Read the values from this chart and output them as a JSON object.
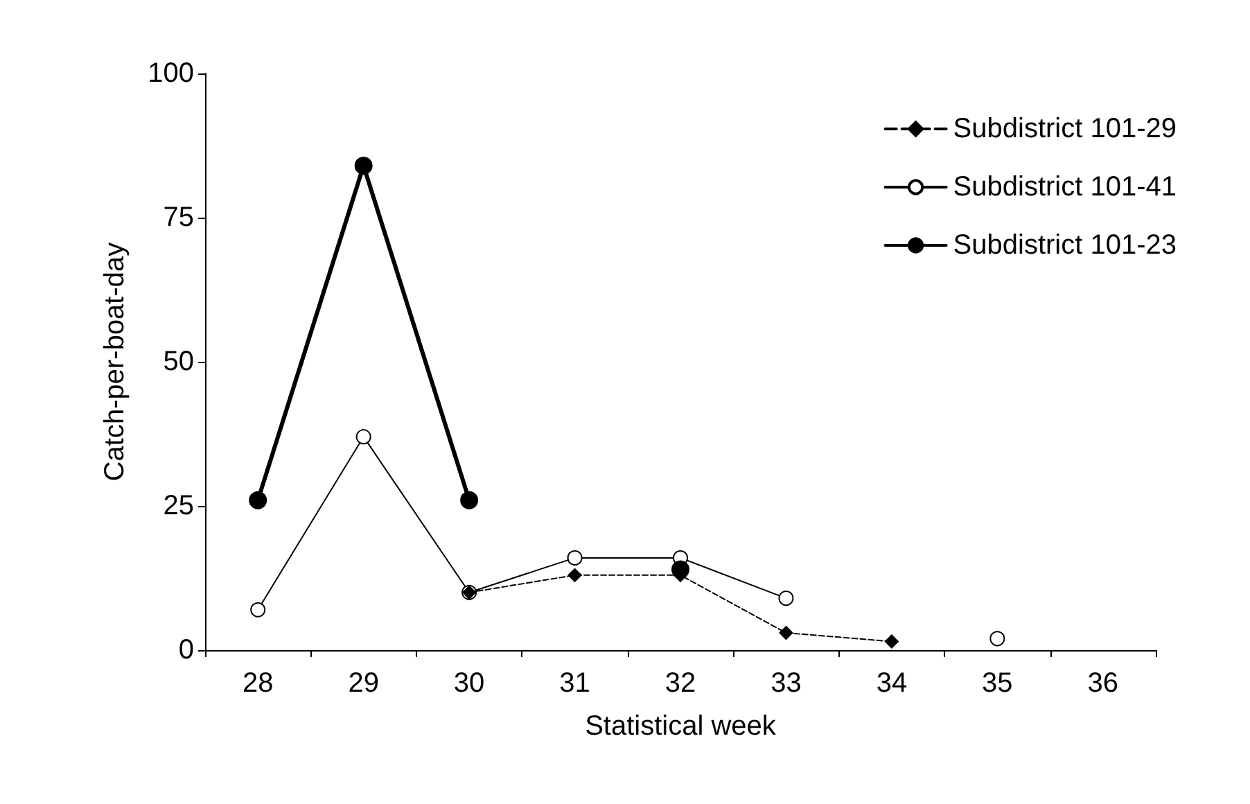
{
  "chart_data": {
    "type": "line",
    "xlabel": "Statistical week",
    "ylabel": "Catch-per-boat-day",
    "categories": [
      "28",
      "29",
      "30",
      "31",
      "32",
      "33",
      "34",
      "35",
      "36"
    ],
    "ylim": [
      0,
      100
    ],
    "yticks": [
      0,
      25,
      50,
      75,
      100
    ],
    "grid": false,
    "legend": "top right",
    "series": [
      {
        "name": "Subdistrict 101-29",
        "color": "#000000",
        "marker": "diamond",
        "line_style": "dashed",
        "values": [
          null,
          null,
          10,
          13,
          13,
          3,
          1.5,
          null,
          null
        ]
      },
      {
        "name": "Subdistrict 101-41",
        "color": "#000000",
        "marker": "circle",
        "line_style": "solid",
        "values": [
          7,
          37,
          10,
          16,
          16,
          9,
          null,
          2,
          null
        ]
      },
      {
        "name": "Subdistrict 101-23",
        "color": "#000000",
        "marker": "circle",
        "line_style": "solid",
        "values": [
          26,
          84,
          26,
          null,
          14,
          null,
          null,
          null,
          null
        ]
      }
    ]
  }
}
